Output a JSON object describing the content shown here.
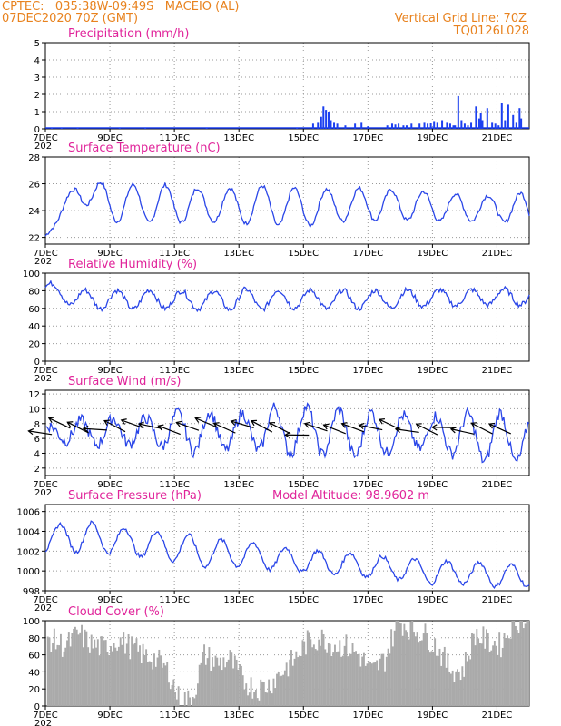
{
  "header": {
    "line1": "CPTEC:   035:38W-09:49S   MACEIO (AL)",
    "line2": "07DEC2020 70Z (GMT)",
    "grid_note": "Vertical Grid Line: 70Z",
    "code": "TQ0126L028"
  },
  "x_ticks": [
    "7DEC",
    "9DEC",
    "11DEC",
    "13DEC",
    "15DEC",
    "17DEC",
    "19DEC",
    "21DEC"
  ],
  "x_year": "202",
  "colors": {
    "line": "#2a46e8",
    "bar": "#1b3ff0",
    "cloud": "#aaaaaa",
    "title": "#e0249a",
    "header": "#e8821e"
  },
  "chart_data": [
    {
      "id": "precip",
      "type": "bar",
      "title": "Precipitation (mm/h)",
      "ylim": [
        0,
        5
      ],
      "yticks": [
        0,
        1,
        2,
        3,
        4,
        5
      ],
      "x_days": [
        0.2,
        0.5,
        1.0,
        2.3,
        3.1,
        5.0,
        7.8,
        8.3,
        8.45,
        8.55,
        8.62,
        8.7,
        8.78,
        8.85,
        8.95,
        9.05,
        9.3,
        9.6,
        9.8,
        10.0,
        10.6,
        10.75,
        10.85,
        10.95,
        11.1,
        11.2,
        11.35,
        11.6,
        11.75,
        11.85,
        11.95,
        12.05,
        12.15,
        12.3,
        12.45,
        12.55,
        12.65,
        12.7,
        12.8,
        12.9,
        13.0,
        13.1,
        13.2,
        13.35,
        13.45,
        13.5,
        13.55,
        13.7,
        13.85,
        13.95,
        14.05,
        14.15,
        14.25,
        14.35,
        14.5,
        14.6,
        14.7,
        14.75
      ],
      "values": [
        0.05,
        0.05,
        0.05,
        0.05,
        0.05,
        0.05,
        0.05,
        0.3,
        0.4,
        0.7,
        1.3,
        1.1,
        1.0,
        0.5,
        0.4,
        0.3,
        0.2,
        0.3,
        0.4,
        0.15,
        0.2,
        0.3,
        0.25,
        0.3,
        0.2,
        0.2,
        0.3,
        0.3,
        0.4,
        0.3,
        0.35,
        0.45,
        0.4,
        0.5,
        0.4,
        0.3,
        0.2,
        0.2,
        1.9,
        0.5,
        0.3,
        0.2,
        0.4,
        1.3,
        0.6,
        0.9,
        0.5,
        1.2,
        0.4,
        0.3,
        0.2,
        1.5,
        0.5,
        1.4,
        0.8,
        0.4,
        1.2,
        0.6
      ]
    },
    {
      "id": "temp",
      "type": "line",
      "title": "Surface Temperature (nC)",
      "ylim": [
        21.5,
        28
      ],
      "yticks": [
        22,
        24,
        26,
        28
      ],
      "base": [
        22.1,
        25.6,
        24.6,
        24.5,
        24.5,
        24.4,
        24.4,
        24.4,
        24.2,
        24.4,
        24.5,
        24.4,
        24.3,
        24.2,
        24.2,
        24.0
      ],
      "amp": [
        0.0,
        0.8,
        1.4,
        1.4,
        1.4,
        1.2,
        1.3,
        1.5,
        1.4,
        1.2,
        1.2,
        1.1,
        1.1,
        1.0,
        0.9,
        1.4
      ],
      "peak_phase": 0.72
    },
    {
      "id": "rh",
      "type": "line",
      "title": "Relative Humidity (%)",
      "ylim": [
        0,
        100
      ],
      "yticks": [
        0,
        20,
        40,
        60,
        80,
        100
      ],
      "base": [
        84,
        70,
        70,
        70,
        70,
        69,
        70,
        70,
        71,
        70,
        70,
        71,
        72,
        72,
        73,
        73
      ],
      "amp": [
        6,
        11,
        10,
        11,
        10,
        10,
        12,
        11,
        10,
        11,
        10,
        10,
        9,
        9,
        9,
        9
      ],
      "peak_phase": 0.22
    },
    {
      "id": "wind",
      "type": "line",
      "title": "Surface Wind (m/s)",
      "ylim": [
        1,
        12.5
      ],
      "yticks": [
        2,
        4,
        6,
        8,
        10,
        12
      ],
      "base": [
        7.0,
        6.8,
        6.9,
        7.0,
        7.0,
        6.8,
        7.0,
        7.2,
        7.0,
        6.9,
        6.5,
        6.8,
        6.8,
        6.4,
        6.0,
        6.0
      ],
      "amp": [
        0.6,
        1.6,
        1.8,
        1.7,
        2.4,
        2.8,
        2.3,
        3.0,
        3.3,
        3.0,
        3.1,
        2.3,
        2.2,
        2.9,
        3.5,
        3.0
      ],
      "peak_phase": 0.1,
      "arrow_count": 26
    },
    {
      "id": "pres",
      "type": "line",
      "title": "Surface Pressure (hPa)",
      "note": "Model Altitude: 98.9602  m",
      "ylim": [
        998,
        1006.7
      ],
      "yticks": [
        998,
        1000,
        1002,
        1004,
        1006
      ],
      "base": [
        1003.2,
        1003.5,
        1003.2,
        1002.7,
        1002.5,
        1001.8,
        1001.8,
        1001.3,
        1001.0,
        1000.8,
        1000.5,
        1000.2,
        999.9,
        999.8,
        999.6,
        999.4
      ],
      "amp": [
        1.2,
        1.6,
        1.4,
        1.3,
        1.5,
        1.4,
        1.3,
        1.2,
        1.1,
        1.2,
        1.1,
        1.1,
        1.2,
        1.1,
        1.2,
        1.0
      ],
      "peak_phase": 0.45
    },
    {
      "id": "cloud",
      "type": "area",
      "title": "Cloud Cover (%)",
      "ylim": [
        0,
        100
      ],
      "yticks": [
        0,
        20,
        40,
        60,
        80,
        100
      ],
      "x_days": [
        0,
        0.3,
        0.6,
        1.0,
        1.4,
        1.8,
        2.2,
        2.6,
        3.0,
        3.4,
        3.8,
        4.1,
        4.5,
        4.9,
        5.3,
        5.7,
        6.1,
        6.5,
        6.9,
        7.3,
        7.7,
        8.1,
        8.5,
        8.9,
        9.3,
        9.7,
        10.1,
        10.5,
        10.9,
        11.3,
        11.7,
        12.1,
        12.5,
        12.9,
        13.3,
        13.7,
        14.1,
        14.5,
        14.8
      ],
      "values": [
        80,
        75,
        70,
        85,
        72,
        68,
        78,
        70,
        60,
        55,
        40,
        10,
        5,
        60,
        50,
        55,
        30,
        20,
        25,
        40,
        55,
        75,
        80,
        72,
        70,
        60,
        40,
        55,
        100,
        92,
        85,
        70,
        45,
        40,
        85,
        75,
        72,
        100,
        100
      ]
    }
  ]
}
